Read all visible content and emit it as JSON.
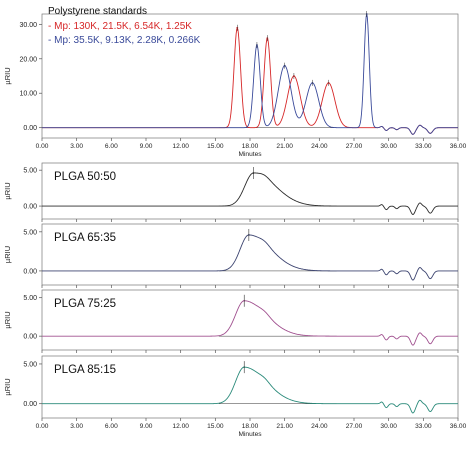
{
  "chart_data": [
    {
      "type": "line",
      "title": "Polystyrene standards",
      "legend": [
        "- Mp: 130K, 21.5K, 6.54K, 1.25K",
        "- Mp: 35.5K, 9.13K, 2.28K, 0.266K"
      ],
      "xlabel": "Minutes",
      "ylabel": "µRIU",
      "xlim": [
        0,
        36
      ],
      "ylim": [
        -3,
        33
      ],
      "yticks": [
        "0.00",
        "10.00",
        "20.00",
        "30.00"
      ],
      "series": [
        {
          "name": "- Mp: 130K, 21.5K, 6.54K, 1.25K",
          "color": "#d62728",
          "peaks": [
            {
              "x": 16.9,
              "y": 29.0
            },
            {
              "x": 19.5,
              "y": 26.0
            },
            {
              "x": 21.8,
              "y": 15.0
            },
            {
              "x": 24.8,
              "y": 13.0
            }
          ]
        },
        {
          "name": "- Mp: 35.5K, 9.13K, 2.28K, 0.266K",
          "color": "#3a4a9a",
          "peaks": [
            {
              "x": 18.6,
              "y": 24.0
            },
            {
              "x": 21.0,
              "y": 18.0
            },
            {
              "x": 23.4,
              "y": 13.0
            },
            {
              "x": 28.1,
              "y": 33.0
            }
          ]
        }
      ]
    },
    {
      "type": "line",
      "title": "PLGA 50:50",
      "ylabel": "µRIU",
      "xlim": [
        0,
        36
      ],
      "ylim": [
        -1.8,
        6
      ],
      "yticks": [
        "0.00",
        "5.00"
      ],
      "series": [
        {
          "name": "PLGA 50:50",
          "color": "#2b2b2b",
          "peak": {
            "x": 18.3,
            "y": 4.6
          }
        }
      ]
    },
    {
      "type": "line",
      "title": "PLGA 65:35",
      "ylabel": "µRIU",
      "xlim": [
        0,
        36
      ],
      "ylim": [
        -1.8,
        6
      ],
      "yticks": [
        "0.00",
        "5.00"
      ],
      "series": [
        {
          "name": "PLGA 65:35",
          "color": "#3c4470",
          "peak": {
            "x": 17.9,
            "y": 4.6
          }
        }
      ]
    },
    {
      "type": "line",
      "title": "PLGA 75:25",
      "ylabel": "µRIU",
      "xlim": [
        0,
        36
      ],
      "ylim": [
        -1.8,
        6
      ],
      "yticks": [
        "0.00",
        "5.00"
      ],
      "series": [
        {
          "name": "PLGA 75:25",
          "color": "#a0508f",
          "peak": {
            "x": 17.5,
            "y": 4.6
          }
        }
      ]
    },
    {
      "type": "line",
      "title": "PLGA 85:15",
      "ylabel": "µRIU",
      "xlabel": "Minutes",
      "xlim": [
        0,
        36
      ],
      "ylim": [
        -1.8,
        6
      ],
      "yticks": [
        "0.00",
        "5.00"
      ],
      "series": [
        {
          "name": "PLGA 85:15",
          "color": "#2a8a7a",
          "peak": {
            "x": 17.5,
            "y": 4.6
          }
        }
      ]
    }
  ],
  "xticks": [
    "0.00",
    "3.00",
    "6.00",
    "9.00",
    "12.00",
    "15.00",
    "18.00",
    "21.00",
    "24.00",
    "27.00",
    "30.00",
    "33.00",
    "36.00"
  ]
}
